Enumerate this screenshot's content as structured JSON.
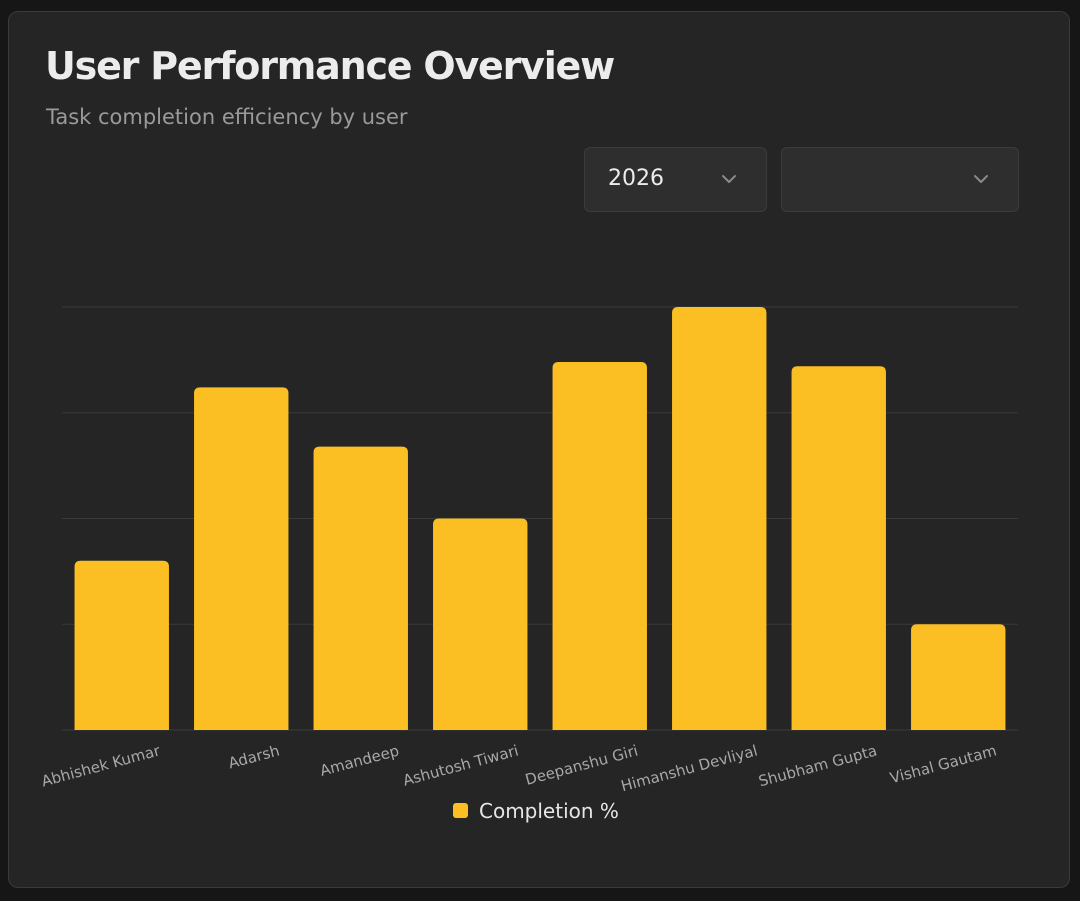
{
  "card": {
    "title": "User Performance Overview",
    "subtitle": "Task completion efficiency by user"
  },
  "filters": {
    "year": {
      "value": "2026",
      "icon": "chevron-down-icon"
    },
    "secondary": {
      "value": "",
      "icon": "chevron-down-icon"
    }
  },
  "colors": {
    "bar": "#fbbf24",
    "grid": "#3a3a3a",
    "tick_label": "#a8a8a8"
  },
  "chart_data": {
    "type": "bar",
    "categories": [
      "Abhishek Kumar",
      "Adarsh",
      "Amandeep",
      "Ashutosh Tiwari",
      "Deepanshu Giri",
      "Himanshu Devliyal",
      "Shubham Gupta",
      "Vishal Gautam"
    ],
    "series": [
      {
        "name": "Completion %",
        "values": [
          40,
          81,
          67,
          50,
          87,
          100,
          86,
          25
        ]
      }
    ],
    "ylim": [
      0,
      100
    ],
    "grid": true,
    "legend": "bottom-center",
    "y_tick_labels_visible": false
  }
}
